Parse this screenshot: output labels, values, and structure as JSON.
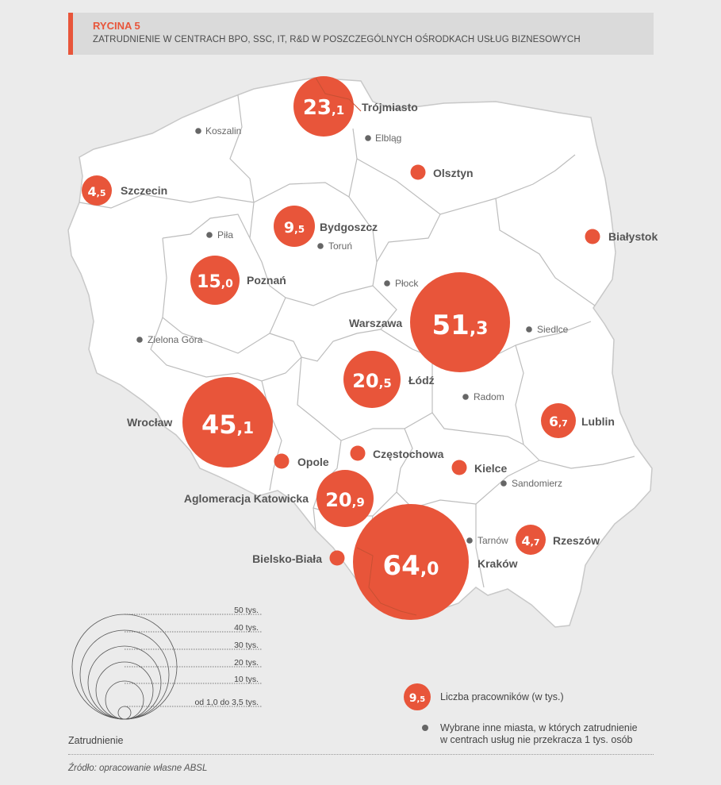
{
  "header": {
    "tag": "RYCINA 5",
    "title": "ZATRUDNIENIE W CENTRACH BPO, SSC, IT, R&D W POSZCZEGÓLNYCH OŚRODKACH USŁUG BIZNESOWYCH"
  },
  "colors": {
    "accent": "#e8553a",
    "land": "#ffffff",
    "border": "#bdbdbd",
    "background": "#ebebeb",
    "minor_dot": "#666666"
  },
  "cities_major": [
    {
      "name": "Trójmiasto",
      "value": 23.1,
      "value_int": "23",
      "value_dec": ",1"
    },
    {
      "name": "Szczecin",
      "value": 4.5,
      "value_int": "4",
      "value_dec": ",5"
    },
    {
      "name": "Bydgoszcz",
      "value": 9.5,
      "value_int": "9",
      "value_dec": ",5"
    },
    {
      "name": "Poznań",
      "value": 15.0,
      "value_int": "15",
      "value_dec": ",0"
    },
    {
      "name": "Warszawa",
      "value": 51.3,
      "value_int": "51",
      "value_dec": ",3"
    },
    {
      "name": "Łódź",
      "value": 20.5,
      "value_int": "20",
      "value_dec": ",5"
    },
    {
      "name": "Wrocław",
      "value": 45.1,
      "value_int": "45",
      "value_dec": ",1"
    },
    {
      "name": "Lublin",
      "value": 6.7,
      "value_int": "6",
      "value_dec": ",7"
    },
    {
      "name": "Aglomeracja Katowicka",
      "value": 20.9,
      "value_int": "20",
      "value_dec": ",9"
    },
    {
      "name": "Kraków",
      "value": 64.0,
      "value_int": "64",
      "value_dec": ",0"
    },
    {
      "name": "Rzeszów",
      "value": 4.7,
      "value_int": "4",
      "value_dec": ",7"
    }
  ],
  "cities_small": [
    {
      "name": "Olsztyn"
    },
    {
      "name": "Białystok"
    },
    {
      "name": "Opole"
    },
    {
      "name": "Częstochowa"
    },
    {
      "name": "Kielce"
    },
    {
      "name": "Bielsko-Biała"
    }
  ],
  "cities_minor": [
    {
      "name": "Koszalin"
    },
    {
      "name": "Elbląg"
    },
    {
      "name": "Piła"
    },
    {
      "name": "Toruń"
    },
    {
      "name": "Płock"
    },
    {
      "name": "Siedlce"
    },
    {
      "name": "Zielona Góra"
    },
    {
      "name": "Radom"
    },
    {
      "name": "Sandomierz"
    },
    {
      "name": "Tarnów"
    }
  ],
  "scale": {
    "labels": [
      "50 tys.",
      "40 tys.",
      "30 tys.",
      "20 tys.",
      "10 tys.",
      "od 1,0 do 3,5 tys."
    ],
    "title": "Zatrudnienie"
  },
  "legend": {
    "sample_int": "9",
    "sample_dec": ",5",
    "bubble_text": "Liczba pracowników (w tys.)",
    "dot_text_line1": "Wybrane inne miasta, w których zatrudnienie",
    "dot_text_line2": "w centrach usług nie przekracza 1 tys. osób"
  },
  "source": "Źródło: opracowanie własne ABSL"
}
